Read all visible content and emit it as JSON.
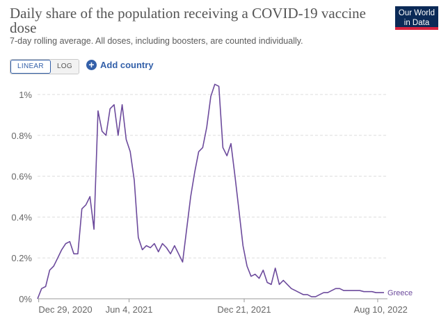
{
  "header": {
    "title": "Daily share of the population receiving a COVID-19 vaccine dose",
    "subtitle": "7-day rolling average. All doses, including boosters, are counted individually.",
    "logo_line1": "Our World",
    "logo_line2": "in Data"
  },
  "controls": {
    "linear_label": "LINEAR",
    "log_label": "LOG",
    "add_country_label": "Add country",
    "scale_selected": "linear"
  },
  "colors": {
    "line": "#6c4a9c",
    "grid": "#dddddd",
    "logo_bg": "#0b2a57",
    "accent": "#3360a9"
  },
  "chart_data": {
    "type": "line",
    "title": "Daily share of the population receiving a COVID-19 vaccine dose",
    "subtitle": "7-day rolling average. All doses, including boosters, are counted individually.",
    "xlabel": "",
    "ylabel": "",
    "x_ticks": [
      "Dec 29, 2020",
      "Jun 4, 2021",
      "Dec 21, 2021",
      "Aug 10, 2022"
    ],
    "y_ticks": [
      "0%",
      "0.2%",
      "0.4%",
      "0.6%",
      "0.8%",
      "1%"
    ],
    "ylim": [
      0,
      1.05
    ],
    "xlim": [
      "2020-12-27",
      "2022-08-27"
    ],
    "grid": true,
    "series": [
      {
        "name": "Greece",
        "x": [
          "2020-12-27",
          "2021-01-03",
          "2021-01-10",
          "2021-01-17",
          "2021-01-24",
          "2021-01-31",
          "2021-02-07",
          "2021-02-14",
          "2021-02-21",
          "2021-02-28",
          "2021-03-07",
          "2021-03-14",
          "2021-03-21",
          "2021-03-28",
          "2021-04-04",
          "2021-04-11",
          "2021-04-18",
          "2021-04-25",
          "2021-05-02",
          "2021-05-09",
          "2021-05-16",
          "2021-05-23",
          "2021-05-30",
          "2021-06-06",
          "2021-06-13",
          "2021-06-20",
          "2021-06-27",
          "2021-07-04",
          "2021-07-11",
          "2021-07-18",
          "2021-07-25",
          "2021-08-01",
          "2021-08-08",
          "2021-08-15",
          "2021-08-22",
          "2021-08-29",
          "2021-09-05",
          "2021-09-12",
          "2021-09-19",
          "2021-09-26",
          "2021-10-03",
          "2021-10-10",
          "2021-10-17",
          "2021-10-24",
          "2021-10-31",
          "2021-11-07",
          "2021-11-14",
          "2021-11-21",
          "2021-11-28",
          "2021-12-05",
          "2021-12-12",
          "2021-12-19",
          "2021-12-26",
          "2022-01-02",
          "2022-01-09",
          "2022-01-16",
          "2022-01-23",
          "2022-01-30",
          "2022-02-06",
          "2022-02-13",
          "2022-02-20",
          "2022-02-27",
          "2022-03-06",
          "2022-03-13",
          "2022-03-20",
          "2022-03-27",
          "2022-04-03",
          "2022-04-10",
          "2022-04-17",
          "2022-04-24",
          "2022-05-01",
          "2022-05-08",
          "2022-05-15",
          "2022-05-22",
          "2022-05-29",
          "2022-06-05",
          "2022-06-12",
          "2022-06-19",
          "2022-06-26",
          "2022-07-03",
          "2022-07-10",
          "2022-07-17",
          "2022-07-24",
          "2022-07-31",
          "2022-08-07",
          "2022-08-14",
          "2022-08-21"
        ],
        "values": [
          0.0,
          0.05,
          0.06,
          0.14,
          0.16,
          0.2,
          0.24,
          0.27,
          0.28,
          0.22,
          0.22,
          0.44,
          0.46,
          0.5,
          0.34,
          0.92,
          0.82,
          0.8,
          0.93,
          0.95,
          0.8,
          0.95,
          0.78,
          0.72,
          0.58,
          0.3,
          0.24,
          0.26,
          0.25,
          0.27,
          0.23,
          0.27,
          0.25,
          0.22,
          0.26,
          0.22,
          0.18,
          0.34,
          0.5,
          0.62,
          0.72,
          0.74,
          0.84,
          0.99,
          1.05,
          1.04,
          0.74,
          0.7,
          0.76,
          0.6,
          0.43,
          0.26,
          0.16,
          0.11,
          0.12,
          0.1,
          0.14,
          0.08,
          0.07,
          0.15,
          0.07,
          0.09,
          0.07,
          0.05,
          0.04,
          0.03,
          0.02,
          0.02,
          0.01,
          0.01,
          0.02,
          0.03,
          0.03,
          0.04,
          0.05,
          0.05,
          0.04,
          0.04,
          0.04,
          0.04,
          0.04,
          0.035,
          0.035,
          0.035,
          0.03,
          0.03,
          0.03
        ]
      }
    ]
  }
}
